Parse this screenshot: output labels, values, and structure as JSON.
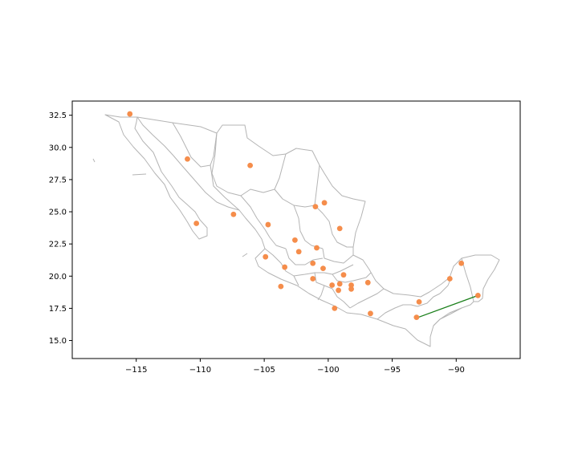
{
  "chart_data": {
    "type": "scatter",
    "title": "",
    "xlabel": "",
    "ylabel": "",
    "xlim": [
      -120,
      -85
    ],
    "ylim": [
      13.6,
      33.6
    ],
    "x_ticks": [
      -115,
      -110,
      -105,
      -100,
      -95,
      -90
    ],
    "x_tick_labels": [
      "−115",
      "−110",
      "−105",
      "−100",
      "−95",
      "−90"
    ],
    "y_ticks": [
      15.0,
      17.5,
      20.0,
      22.5,
      25.0,
      27.5,
      30.0,
      32.5
    ],
    "y_tick_labels": [
      "15.0",
      "17.5",
      "20.0",
      "22.5",
      "25.0",
      "27.5",
      "30.0",
      "32.5"
    ],
    "grid": false,
    "colors": {
      "points": "#f58d4b",
      "route": "#1a7f1a",
      "borders": "#b4b4b4"
    },
    "basemap": "state boundaries (gray outlines)",
    "series": [
      {
        "points": [
          [
            -115.5,
            32.6
          ],
          [
            -111.0,
            29.1
          ],
          [
            -106.1,
            28.6
          ],
          [
            -107.4,
            24.8
          ],
          [
            -110.3,
            24.1
          ],
          [
            -104.7,
            24.0
          ],
          [
            -101.0,
            25.4
          ],
          [
            -100.3,
            25.7
          ],
          [
            -99.1,
            23.7
          ],
          [
            -102.6,
            22.8
          ],
          [
            -102.3,
            21.9
          ],
          [
            -100.9,
            22.2
          ],
          [
            -104.9,
            21.5
          ],
          [
            -103.4,
            20.7
          ],
          [
            -101.2,
            21.0
          ],
          [
            -100.4,
            20.6
          ],
          [
            -101.2,
            19.8
          ],
          [
            -98.8,
            20.1
          ],
          [
            -103.7,
            19.2
          ],
          [
            -99.7,
            19.3
          ],
          [
            -99.1,
            19.4
          ],
          [
            -98.2,
            19.3
          ],
          [
            -98.2,
            19.0
          ],
          [
            -99.2,
            18.9
          ],
          [
            -96.9,
            19.5
          ],
          [
            -99.5,
            17.5
          ],
          [
            -96.7,
            17.1
          ],
          [
            -92.9,
            18.0
          ],
          [
            -93.1,
            16.8
          ],
          [
            -90.5,
            19.8
          ],
          [
            -89.6,
            21.0
          ],
          [
            -88.3,
            18.5
          ]
        ]
      }
    ],
    "route": {
      "from": [
        -93.1,
        16.75
      ],
      "to": [
        -88.3,
        18.5
      ]
    }
  }
}
